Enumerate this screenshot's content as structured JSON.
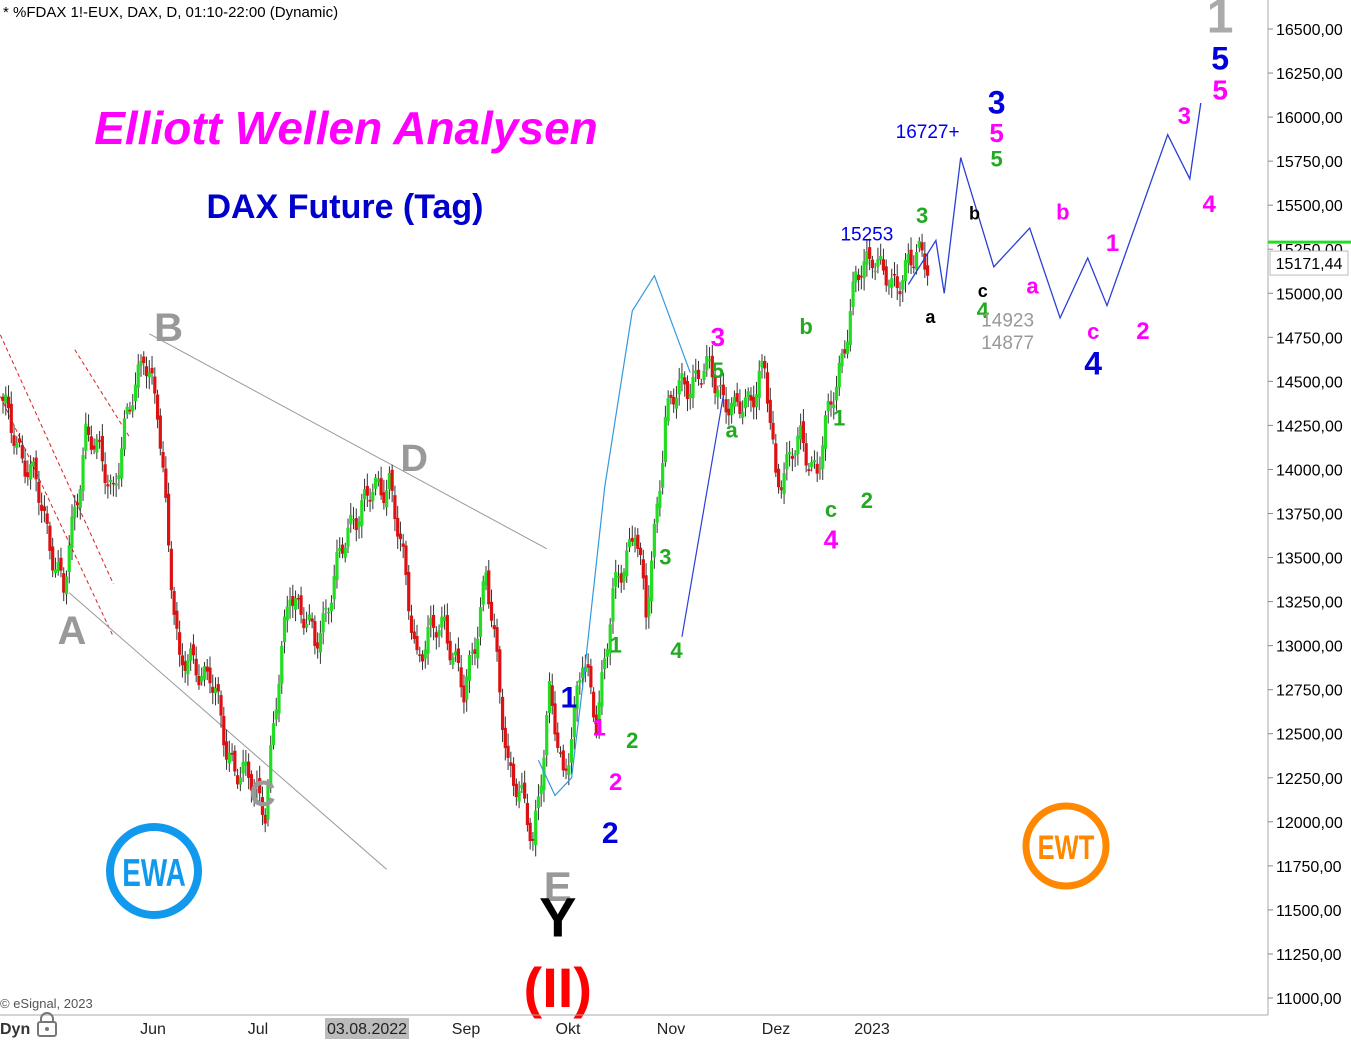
{
  "header": {
    "symbol_line": "* %FDAX 1!-EUX, DAX, D, 01:10-22:00 (Dynamic)"
  },
  "title": "Elliott Wellen Analysen",
  "subtitle": "DAX Future (Tag)",
  "copyright": "© eSignal, 2023",
  "footer": {
    "mode_label": "Dyn"
  },
  "logos": {
    "left": "EWA",
    "right": "EWT"
  },
  "colors": {
    "up_candle": "#22dd22",
    "down_candle": "#dd1111",
    "title": "#ff00ff",
    "subtitle": "#0000cc",
    "projection": "#2b3fd6",
    "cycle_line": "#3399dd",
    "price_marker": "#22dd22",
    "ewa_logo": "#1199ee",
    "ewt_logo": "#ff8800"
  },
  "chart_data": {
    "type": "candlestick",
    "yaxis": {
      "min": 11000,
      "max": 16500,
      "ticks": [
        "16500,00",
        "16250,00",
        "16000,00",
        "15750,00",
        "15500,00",
        "15250,00",
        "15000,00",
        "14750,00",
        "14500,00",
        "14250,00",
        "14000,00",
        "13750,00",
        "13500,00",
        "13250,00",
        "13000,00",
        "12750,00",
        "12500,00",
        "12250,00",
        "12000,00",
        "11750,00",
        "11500,00",
        "11250,00",
        "11000,00"
      ],
      "tick_values": [
        16500,
        16250,
        16000,
        15750,
        15500,
        15250,
        15000,
        14750,
        14500,
        14250,
        14000,
        13750,
        13500,
        13250,
        13000,
        12750,
        12500,
        12250,
        12000,
        11750,
        11500,
        11250,
        11000
      ]
    },
    "xaxis": {
      "labels": [
        "Jun",
        "Jul",
        "03.08.2022",
        "Sep",
        "Okt",
        "Nov",
        "Dez",
        "2023"
      ],
      "highlight_index": 2
    },
    "last_price": "15171,44",
    "last_price_value": 15171.44,
    "pivots": [
      {
        "d": 0,
        "v": 14350
      },
      {
        "d": 12,
        "v": 13900
      },
      {
        "d": 22,
        "v": 13300
      },
      {
        "d": 30,
        "v": 14220
      },
      {
        "d": 40,
        "v": 13900
      },
      {
        "d": 51,
        "v": 14700
      },
      {
        "d": 56,
        "v": 14300
      },
      {
        "d": 64,
        "v": 12900
      },
      {
        "d": 75,
        "v": 12850
      },
      {
        "d": 81,
        "v": 12400
      },
      {
        "d": 95,
        "v": 12100
      },
      {
        "d": 104,
        "v": 13350
      },
      {
        "d": 113,
        "v": 13000
      },
      {
        "d": 127,
        "v": 13750
      },
      {
        "d": 140,
        "v": 13950
      },
      {
        "d": 150,
        "v": 12950
      },
      {
        "d": 160,
        "v": 13150
      },
      {
        "d": 167,
        "v": 12700
      },
      {
        "d": 175,
        "v": 13400
      },
      {
        "d": 183,
        "v": 12350
      },
      {
        "d": 192,
        "v": 11900
      },
      {
        "d": 198,
        "v": 12700
      },
      {
        "d": 203,
        "v": 12250
      },
      {
        "d": 210,
        "v": 12900
      },
      {
        "d": 215,
        "v": 12600
      },
      {
        "d": 221,
        "v": 13250
      },
      {
        "d": 229,
        "v": 13700
      },
      {
        "d": 233,
        "v": 13150
      },
      {
        "d": 240,
        "v": 14300
      },
      {
        "d": 247,
        "v": 14500
      },
      {
        "d": 257,
        "v": 14550
      },
      {
        "d": 265,
        "v": 14300
      },
      {
        "d": 276,
        "v": 14550
      },
      {
        "d": 280,
        "v": 13950
      },
      {
        "d": 289,
        "v": 14150
      },
      {
        "d": 295,
        "v": 14000
      },
      {
        "d": 302,
        "v": 14500
      },
      {
        "d": 309,
        "v": 15050
      },
      {
        "d": 315,
        "v": 15250
      },
      {
        "d": 322,
        "v": 15000
      },
      {
        "d": 328,
        "v": 15200
      },
      {
        "d": 335,
        "v": 15171.44
      }
    ],
    "projection_path": [
      {
        "day": 328,
        "v": 15050
      },
      {
        "day": 338,
        "v": 15300
      },
      {
        "day": 341,
        "v": 15000
      },
      {
        "day": 347,
        "v": 15770
      },
      {
        "day": 359,
        "v": 15150
      },
      {
        "day": 372,
        "v": 15370
      },
      {
        "day": 383,
        "v": 14860
      },
      {
        "day": 393,
        "v": 15200
      },
      {
        "day": 400,
        "v": 14930
      },
      {
        "day": 422,
        "v": 15900
      },
      {
        "day": 430,
        "v": 15650
      },
      {
        "day": 434,
        "v": 16080
      }
    ],
    "cycle_curve": [
      {
        "day": 194,
        "v": 12350
      },
      {
        "day": 200,
        "v": 12150
      },
      {
        "day": 206,
        "v": 12250
      },
      {
        "day": 211,
        "v": 12900
      },
      {
        "day": 218,
        "v": 13900
      },
      {
        "day": 228,
        "v": 14900
      },
      {
        "day": 236,
        "v": 15100
      },
      {
        "day": 249,
        "v": 14550
      }
    ],
    "trendlines": [
      {
        "from": {
          "day": -2,
          "v": 14800
        },
        "to": {
          "day": 40,
          "v": 13350
        },
        "style": "dashed-red"
      },
      {
        "from": {
          "day": -2,
          "v": 14450
        },
        "to": {
          "day": 40,
          "v": 13050
        },
        "style": "dashed-red"
      },
      {
        "from": {
          "day": 26,
          "v": 14680
        },
        "to": {
          "day": 46,
          "v": 14180
        },
        "style": "dashed-red"
      },
      {
        "from": {
          "day": 53,
          "v": 14770
        },
        "to": {
          "day": 197,
          "v": 13550
        },
        "style": "solid-grey"
      },
      {
        "from": {
          "day": 24,
          "v": 13300
        },
        "to": {
          "day": 139,
          "v": 11730
        },
        "style": "solid-grey"
      }
    ],
    "annotations": [
      {
        "text": "B",
        "day": 60,
        "v": 14730,
        "color": "#999999",
        "size": 40
      },
      {
        "text": "A",
        "day": 25,
        "v": 13010,
        "color": "#999999",
        "size": 40
      },
      {
        "text": "C",
        "day": 94,
        "v": 12090,
        "color": "#999999",
        "size": 36
      },
      {
        "text": "D",
        "day": 149,
        "v": 13990,
        "color": "#999999",
        "size": 38
      },
      {
        "text": "E",
        "day": 201,
        "v": 11550,
        "color": "#999999",
        "size": 42
      },
      {
        "text": "Y",
        "day": 201,
        "v": 11350,
        "color": "#000000",
        "size": 56
      },
      {
        "text": "(II)",
        "day": 201,
        "v": 10950,
        "color": "#ff0000",
        "size": 56
      },
      {
        "text": "1",
        "day": 205,
        "v": 12650,
        "color": "#0000dd",
        "size": 30
      },
      {
        "text": "2",
        "day": 220,
        "v": 11880,
        "color": "#0000dd",
        "size": 30
      },
      {
        "text": "1",
        "day": 216,
        "v": 12490,
        "color": "#ff00ff",
        "size": 24
      },
      {
        "text": "2",
        "day": 222,
        "v": 12180,
        "color": "#ff00ff",
        "size": 24
      },
      {
        "text": "1",
        "day": 222,
        "v": 12960,
        "color": "#22aa22",
        "size": 22
      },
      {
        "text": "2",
        "day": 228,
        "v": 12420,
        "color": "#22aa22",
        "size": 22
      },
      {
        "text": "3",
        "day": 240,
        "v": 13460,
        "color": "#22aa22",
        "size": 22
      },
      {
        "text": "4",
        "day": 244,
        "v": 12930,
        "color": "#22aa22",
        "size": 22
      },
      {
        "text": "3",
        "day": 259,
        "v": 14700,
        "color": "#ff00ff",
        "size": 26
      },
      {
        "text": "5",
        "day": 259,
        "v": 14520,
        "color": "#22aa22",
        "size": 22
      },
      {
        "text": "a",
        "day": 264,
        "v": 14180,
        "color": "#22aa22",
        "size": 22
      },
      {
        "text": "b",
        "day": 291,
        "v": 14770,
        "color": "#22aa22",
        "size": 22
      },
      {
        "text": "1",
        "day": 303,
        "v": 14250,
        "color": "#22aa22",
        "size": 22
      },
      {
        "text": "c",
        "day": 300,
        "v": 13730,
        "color": "#22aa22",
        "size": 22
      },
      {
        "text": "4",
        "day": 300,
        "v": 13550,
        "color": "#ff00ff",
        "size": 26
      },
      {
        "text": "2",
        "day": 313,
        "v": 13780,
        "color": "#22aa22",
        "size": 22
      },
      {
        "text": "3",
        "day": 333,
        "v": 15400,
        "color": "#22aa22",
        "size": 22
      },
      {
        "text": "a",
        "day": 336,
        "v": 14830,
        "color": "#000000",
        "size": 18
      },
      {
        "text": "b",
        "day": 352,
        "v": 15420,
        "color": "#000000",
        "size": 18
      },
      {
        "text": "c",
        "day": 355,
        "v": 14980,
        "color": "#000000",
        "size": 18
      },
      {
        "text": "4",
        "day": 355,
        "v": 14860,
        "color": "#22aa22",
        "size": 22
      },
      {
        "text": "3",
        "day": 360,
        "v": 16020,
        "color": "#0000dd",
        "size": 32
      },
      {
        "text": "5",
        "day": 360,
        "v": 15860,
        "color": "#ff00ff",
        "size": 26
      },
      {
        "text": "5",
        "day": 360,
        "v": 15720,
        "color": "#22aa22",
        "size": 22
      },
      {
        "text": "a",
        "day": 373,
        "v": 15000,
        "color": "#ff00ff",
        "size": 22
      },
      {
        "text": "b",
        "day": 384,
        "v": 15420,
        "color": "#ff00ff",
        "size": 22
      },
      {
        "text": "c",
        "day": 395,
        "v": 14740,
        "color": "#ff00ff",
        "size": 22
      },
      {
        "text": "4",
        "day": 395,
        "v": 14540,
        "color": "#0000dd",
        "size": 32
      },
      {
        "text": "1",
        "day": 402,
        "v": 15240,
        "color": "#ff00ff",
        "size": 24
      },
      {
        "text": "2",
        "day": 413,
        "v": 14740,
        "color": "#ff00ff",
        "size": 24
      },
      {
        "text": "3",
        "day": 428,
        "v": 15960,
        "color": "#ff00ff",
        "size": 24
      },
      {
        "text": "4",
        "day": 437,
        "v": 15460,
        "color": "#ff00ff",
        "size": 24
      },
      {
        "text": "1",
        "day": 441,
        "v": 16480,
        "color": "#aaaaaa",
        "size": 48
      },
      {
        "text": "5",
        "day": 441,
        "v": 16270,
        "color": "#0000dd",
        "size": 32
      },
      {
        "text": "5",
        "day": 441,
        "v": 16100,
        "color": "#ff00ff",
        "size": 28
      }
    ],
    "price_labels": [
      {
        "text": "16727+",
        "day": 335,
        "v": 15880,
        "color": "#0000ee",
        "size": 19
      },
      {
        "text": "15253",
        "day": 313,
        "v": 15300,
        "color": "#0000ee",
        "size": 19
      },
      {
        "text": "14923",
        "day": 364,
        "v": 14810,
        "color": "#999999",
        "size": 19
      },
      {
        "text": "14877",
        "day": 364,
        "v": 14685,
        "color": "#999999",
        "size": 19
      }
    ]
  }
}
